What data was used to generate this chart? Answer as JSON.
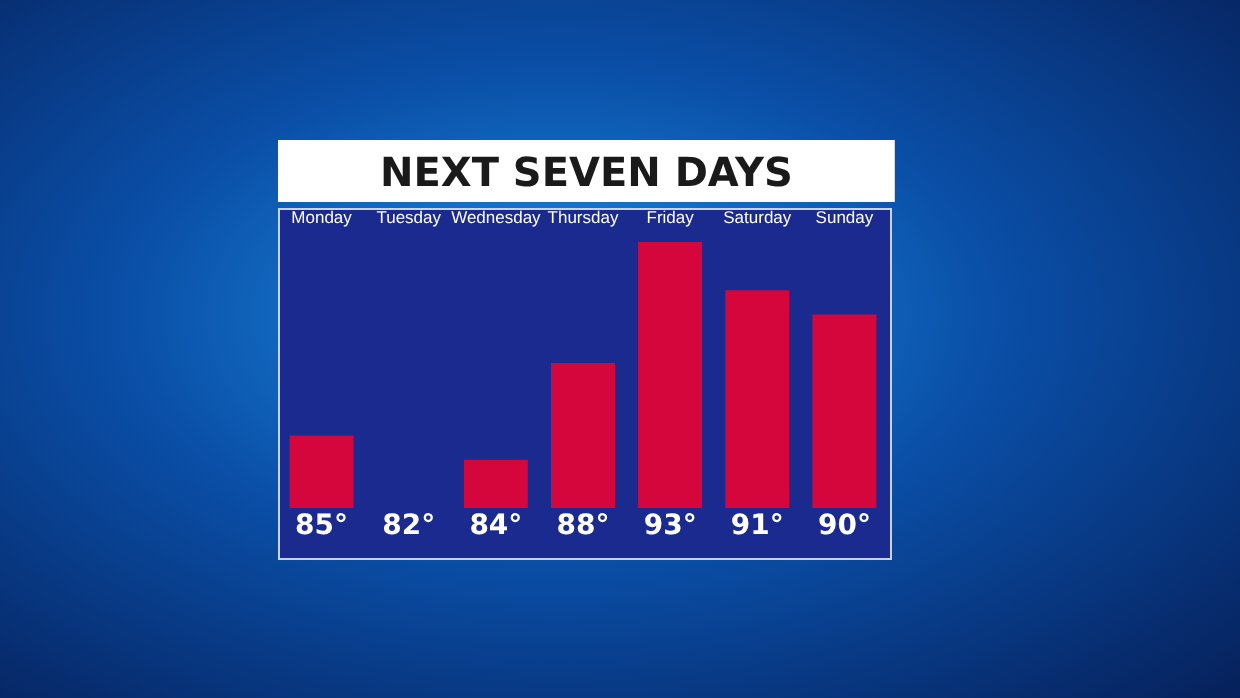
{
  "chart_data": {
    "type": "bar",
    "title": "NEXT SEVEN DAYS",
    "categories": [
      "Monday",
      "Tuesday",
      "Wednesday",
      "Thursday",
      "Friday",
      "Saturday",
      "Sunday"
    ],
    "values": [
      85,
      82,
      84,
      88,
      93,
      91,
      90
    ],
    "value_labels": [
      "85°",
      "82°",
      "84°",
      "88°",
      "93°",
      "91°",
      "90°"
    ],
    "color": "#d4063c",
    "ylim": [
      82,
      93
    ]
  }
}
